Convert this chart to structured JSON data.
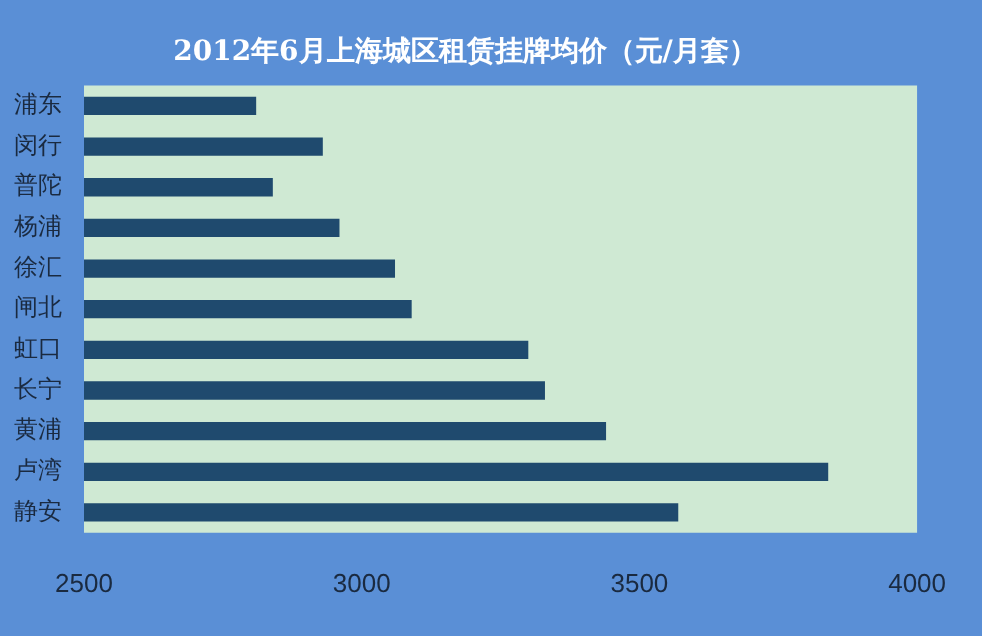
{
  "chart_data": {
    "type": "bar",
    "orientation": "horizontal",
    "title": "2012年6月上海城区租赁挂牌均价（元/月套）",
    "categories": [
      "浦东",
      "闵行",
      "普陀",
      "杨浦",
      "徐汇",
      "闸北",
      "虹口",
      "长宁",
      "黄浦",
      "卢湾",
      "静安"
    ],
    "values": [
      2810,
      2930,
      2840,
      2960,
      3060,
      3090,
      3300,
      3330,
      3440,
      3840,
      3570
    ],
    "color": "#1f4a6e",
    "xlim": [
      2500,
      4000
    ],
    "xticks": [
      2500,
      3000,
      3500,
      4000
    ],
    "grid": false,
    "legend": false
  }
}
